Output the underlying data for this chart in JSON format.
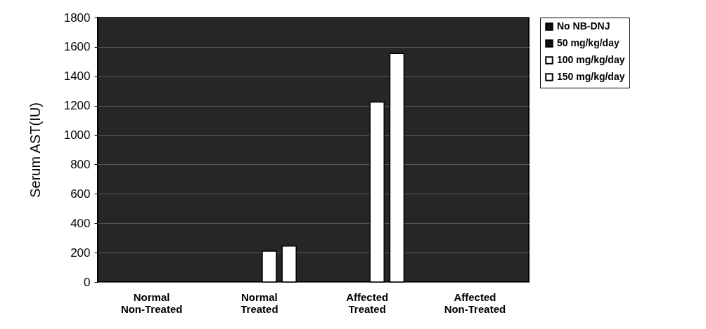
{
  "chart_data": {
    "type": "bar",
    "ylabel": "Serum AST(IU)",
    "categories": [
      "Normal Non-Treated",
      "Normal Treated",
      "Affected Treated",
      "Affected Non-Treated"
    ],
    "series": [
      {
        "name": "No NB-DNJ",
        "color": "#111111",
        "values": [
          null,
          null,
          null,
          null
        ]
      },
      {
        "name": "50 mg/kg/day",
        "color": "#111111",
        "values": [
          null,
          null,
          null,
          null
        ]
      },
      {
        "name": "100 mg/kg/day",
        "color": "#ffffff",
        "values": [
          null,
          210,
          1225,
          null
        ]
      },
      {
        "name": "150 mg/kg/day",
        "color": "#ffffff",
        "values": [
          null,
          245,
          1555,
          null
        ]
      }
    ],
    "ylim": [
      0,
      1800
    ],
    "yticks": [
      0,
      200,
      400,
      600,
      800,
      1000,
      1200,
      1400,
      1600,
      1800
    ],
    "grid": "y",
    "legend": "top right"
  }
}
